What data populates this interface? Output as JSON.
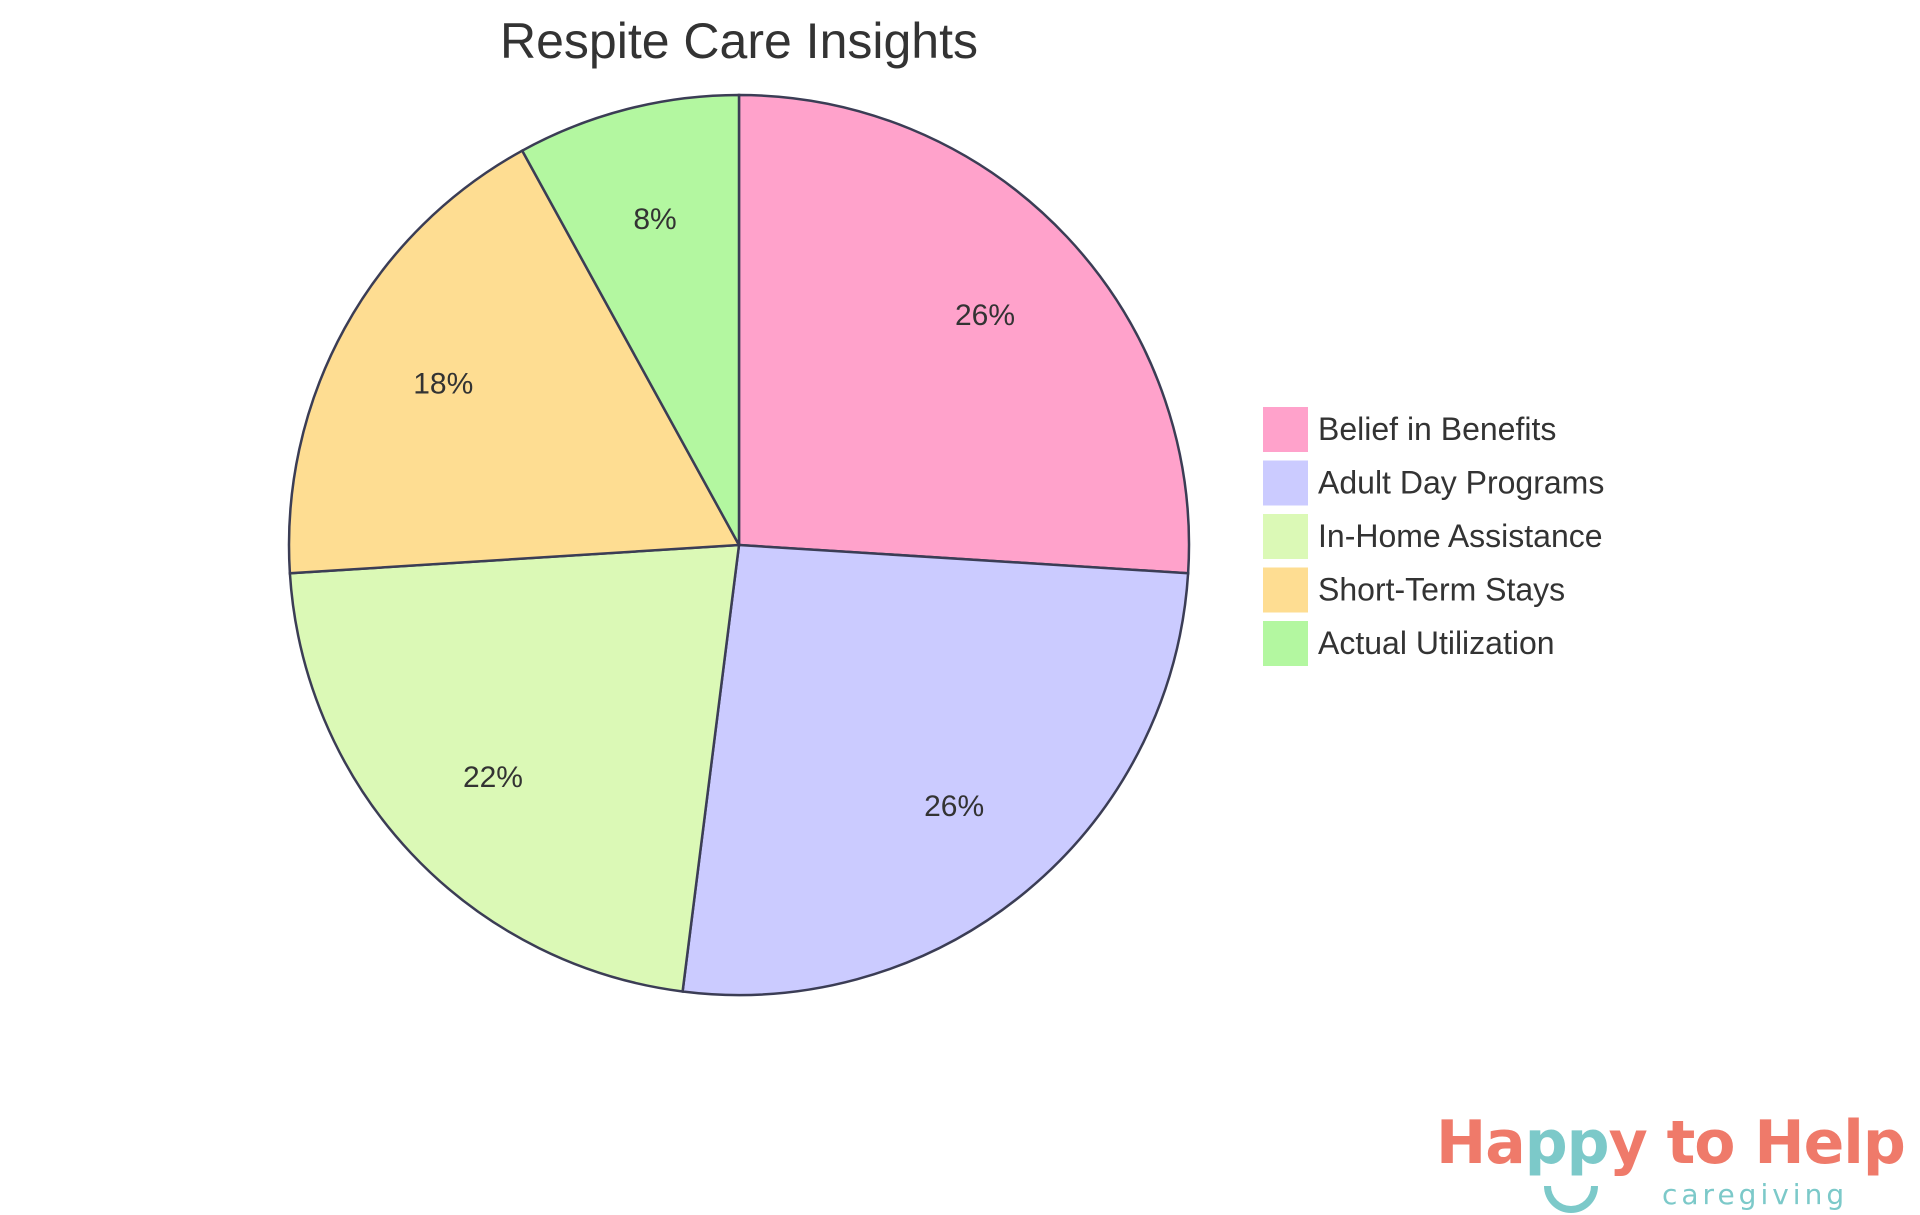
{
  "chart_data": {
    "type": "pie",
    "title": "Respite Care Insights",
    "categories": [
      "Belief in Benefits",
      "Adult Day Programs",
      "In-Home Assistance",
      "Short-Term Stays",
      "Actual Utilization"
    ],
    "values": [
      26,
      26,
      22,
      18,
      8
    ],
    "labels": [
      "26%",
      "26%",
      "22%",
      "18%",
      "8%"
    ],
    "colors": [
      "#ffa2cb",
      "#cbcbff",
      "#dbf9b6",
      "#fedd92",
      "#b3f7a0"
    ],
    "stroke_color": "#3b3d55",
    "legend_position": "right"
  },
  "logo": {
    "text_a": "Ha",
    "text_b": "pp",
    "text_c": "y to Help",
    "sub": "caregiving"
  }
}
